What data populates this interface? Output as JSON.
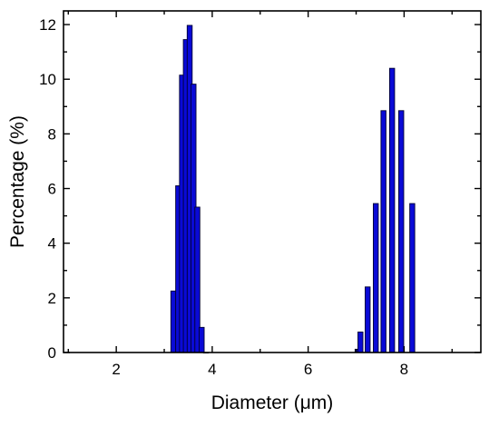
{
  "chart_data": {
    "type": "bar",
    "title": "",
    "xlabel": "Diameter (μm)",
    "ylabel": "Percentage (%)",
    "xlim": [
      0.9,
      9.6
    ],
    "ylim": [
      0,
      12.5
    ],
    "xticks": [
      2,
      4,
      6,
      8
    ],
    "xtick_labels": [
      "2",
      "4",
      "6",
      "8"
    ],
    "yticks": [
      0,
      2,
      4,
      6,
      8,
      10,
      12
    ],
    "ytick_labels": [
      "0",
      "2",
      "4",
      "6",
      "8",
      "10",
      "12"
    ],
    "grid": false,
    "bar_color": "#0a0ad6",
    "bar_edge_color": "#000033",
    "series": [
      {
        "x": [
          3.19,
          3.29,
          3.37,
          3.45,
          3.53,
          3.61,
          3.69,
          3.78,
          3.87,
          7.03,
          7.09,
          7.24,
          7.41,
          7.57,
          7.75,
          7.94,
          8.17
        ],
        "values": [
          2.25,
          6.1,
          10.15,
          11.45,
          11.97,
          9.82,
          5.32,
          0.92,
          0.0,
          0.12,
          0.75,
          2.4,
          5.45,
          8.85,
          10.4,
          8.85,
          5.45
        ]
      }
    ]
  }
}
